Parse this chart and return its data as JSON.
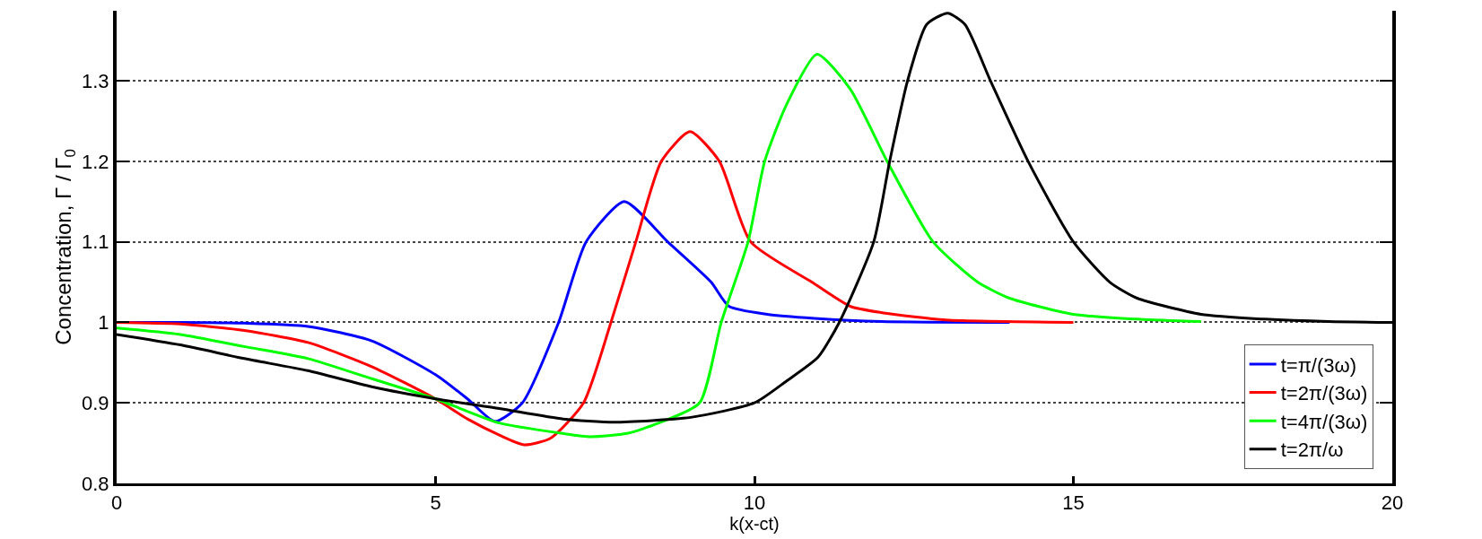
{
  "chart_data": {
    "type": "line",
    "xlabel": "k(x-ct)",
    "ylabel": "Concentration, Γ / Γ$_{0}$",
    "xlim": [
      0,
      20
    ],
    "xticks": [
      0,
      5,
      10,
      15,
      20
    ],
    "ylim": [
      0.8,
      1.387
    ],
    "yticks": [
      0.8,
      0.9,
      1,
      1.1,
      1.2,
      1.3
    ],
    "grid": "y",
    "legend": "bottom right",
    "line_style": "solid",
    "series": [
      {
        "name": "t=π/(3ω)",
        "color": "#0000ff",
        "x": [
          0,
          1,
          2,
          3,
          4,
          5,
          5.5,
          5.93,
          6.36,
          6.93,
          7.36,
          7.96,
          8.64,
          9.32,
          9.6,
          10.2,
          10.94,
          12,
          14
        ],
        "values": [
          1.0,
          1.0,
          0.999,
          0.995,
          0.977,
          0.935,
          0.905,
          0.877,
          0.9,
          1.0,
          1.1,
          1.15,
          1.1,
          1.05,
          1.02,
          1.01,
          1.005,
          1.001,
          1.0
        ]
      },
      {
        "name": "t=2π/(3ω)",
        "color": "#ff0000",
        "x": [
          0,
          1,
          2,
          3,
          4,
          5,
          5.5,
          6,
          6.39,
          6.8,
          7.32,
          7.75,
          8.14,
          8.54,
          8.99,
          9.45,
          9.94,
          10.9,
          11.5,
          12,
          13,
          15
        ],
        "values": [
          1.0,
          0.998,
          0.99,
          0.975,
          0.945,
          0.905,
          0.88,
          0.86,
          0.848,
          0.856,
          0.9,
          1.0,
          1.1,
          1.2,
          1.237,
          1.2,
          1.1,
          1.05,
          1.02,
          1.012,
          1.003,
          1.0
        ]
      },
      {
        "name": "t=4π/(3ω)",
        "color": "#00ff00",
        "x": [
          0,
          1,
          2,
          3,
          4,
          5,
          6,
          7,
          7.43,
          8,
          8.5,
          9.14,
          9.48,
          9.9,
          10.16,
          10.5,
          10.98,
          11.5,
          12.08,
          12.8,
          13.5,
          14,
          15,
          16,
          17
        ],
        "values": [
          0.993,
          0.985,
          0.97,
          0.955,
          0.93,
          0.905,
          0.875,
          0.862,
          0.858,
          0.862,
          0.875,
          0.9,
          1.0,
          1.1,
          1.2,
          1.27,
          1.333,
          1.29,
          1.2,
          1.1,
          1.05,
          1.03,
          1.01,
          1.004,
          1.001
        ]
      },
      {
        "name": "t=2π/ω",
        "color": "#000000",
        "x": [
          0,
          1,
          2,
          3,
          4,
          5,
          6,
          7,
          7.8,
          9,
          10,
          10.5,
          11,
          11.33,
          11.87,
          12.12,
          12.4,
          12.7,
          13.03,
          13.3,
          13.7,
          14.29,
          15,
          15.57,
          16,
          17,
          18,
          19,
          20
        ],
        "values": [
          0.985,
          0.972,
          0.955,
          0.94,
          0.92,
          0.905,
          0.893,
          0.88,
          0.876,
          0.882,
          0.9,
          0.927,
          0.957,
          1.0,
          1.1,
          1.2,
          1.3,
          1.37,
          1.384,
          1.37,
          1.3,
          1.2,
          1.1,
          1.05,
          1.03,
          1.01,
          1.004,
          1.001,
          1.0
        ]
      }
    ]
  }
}
